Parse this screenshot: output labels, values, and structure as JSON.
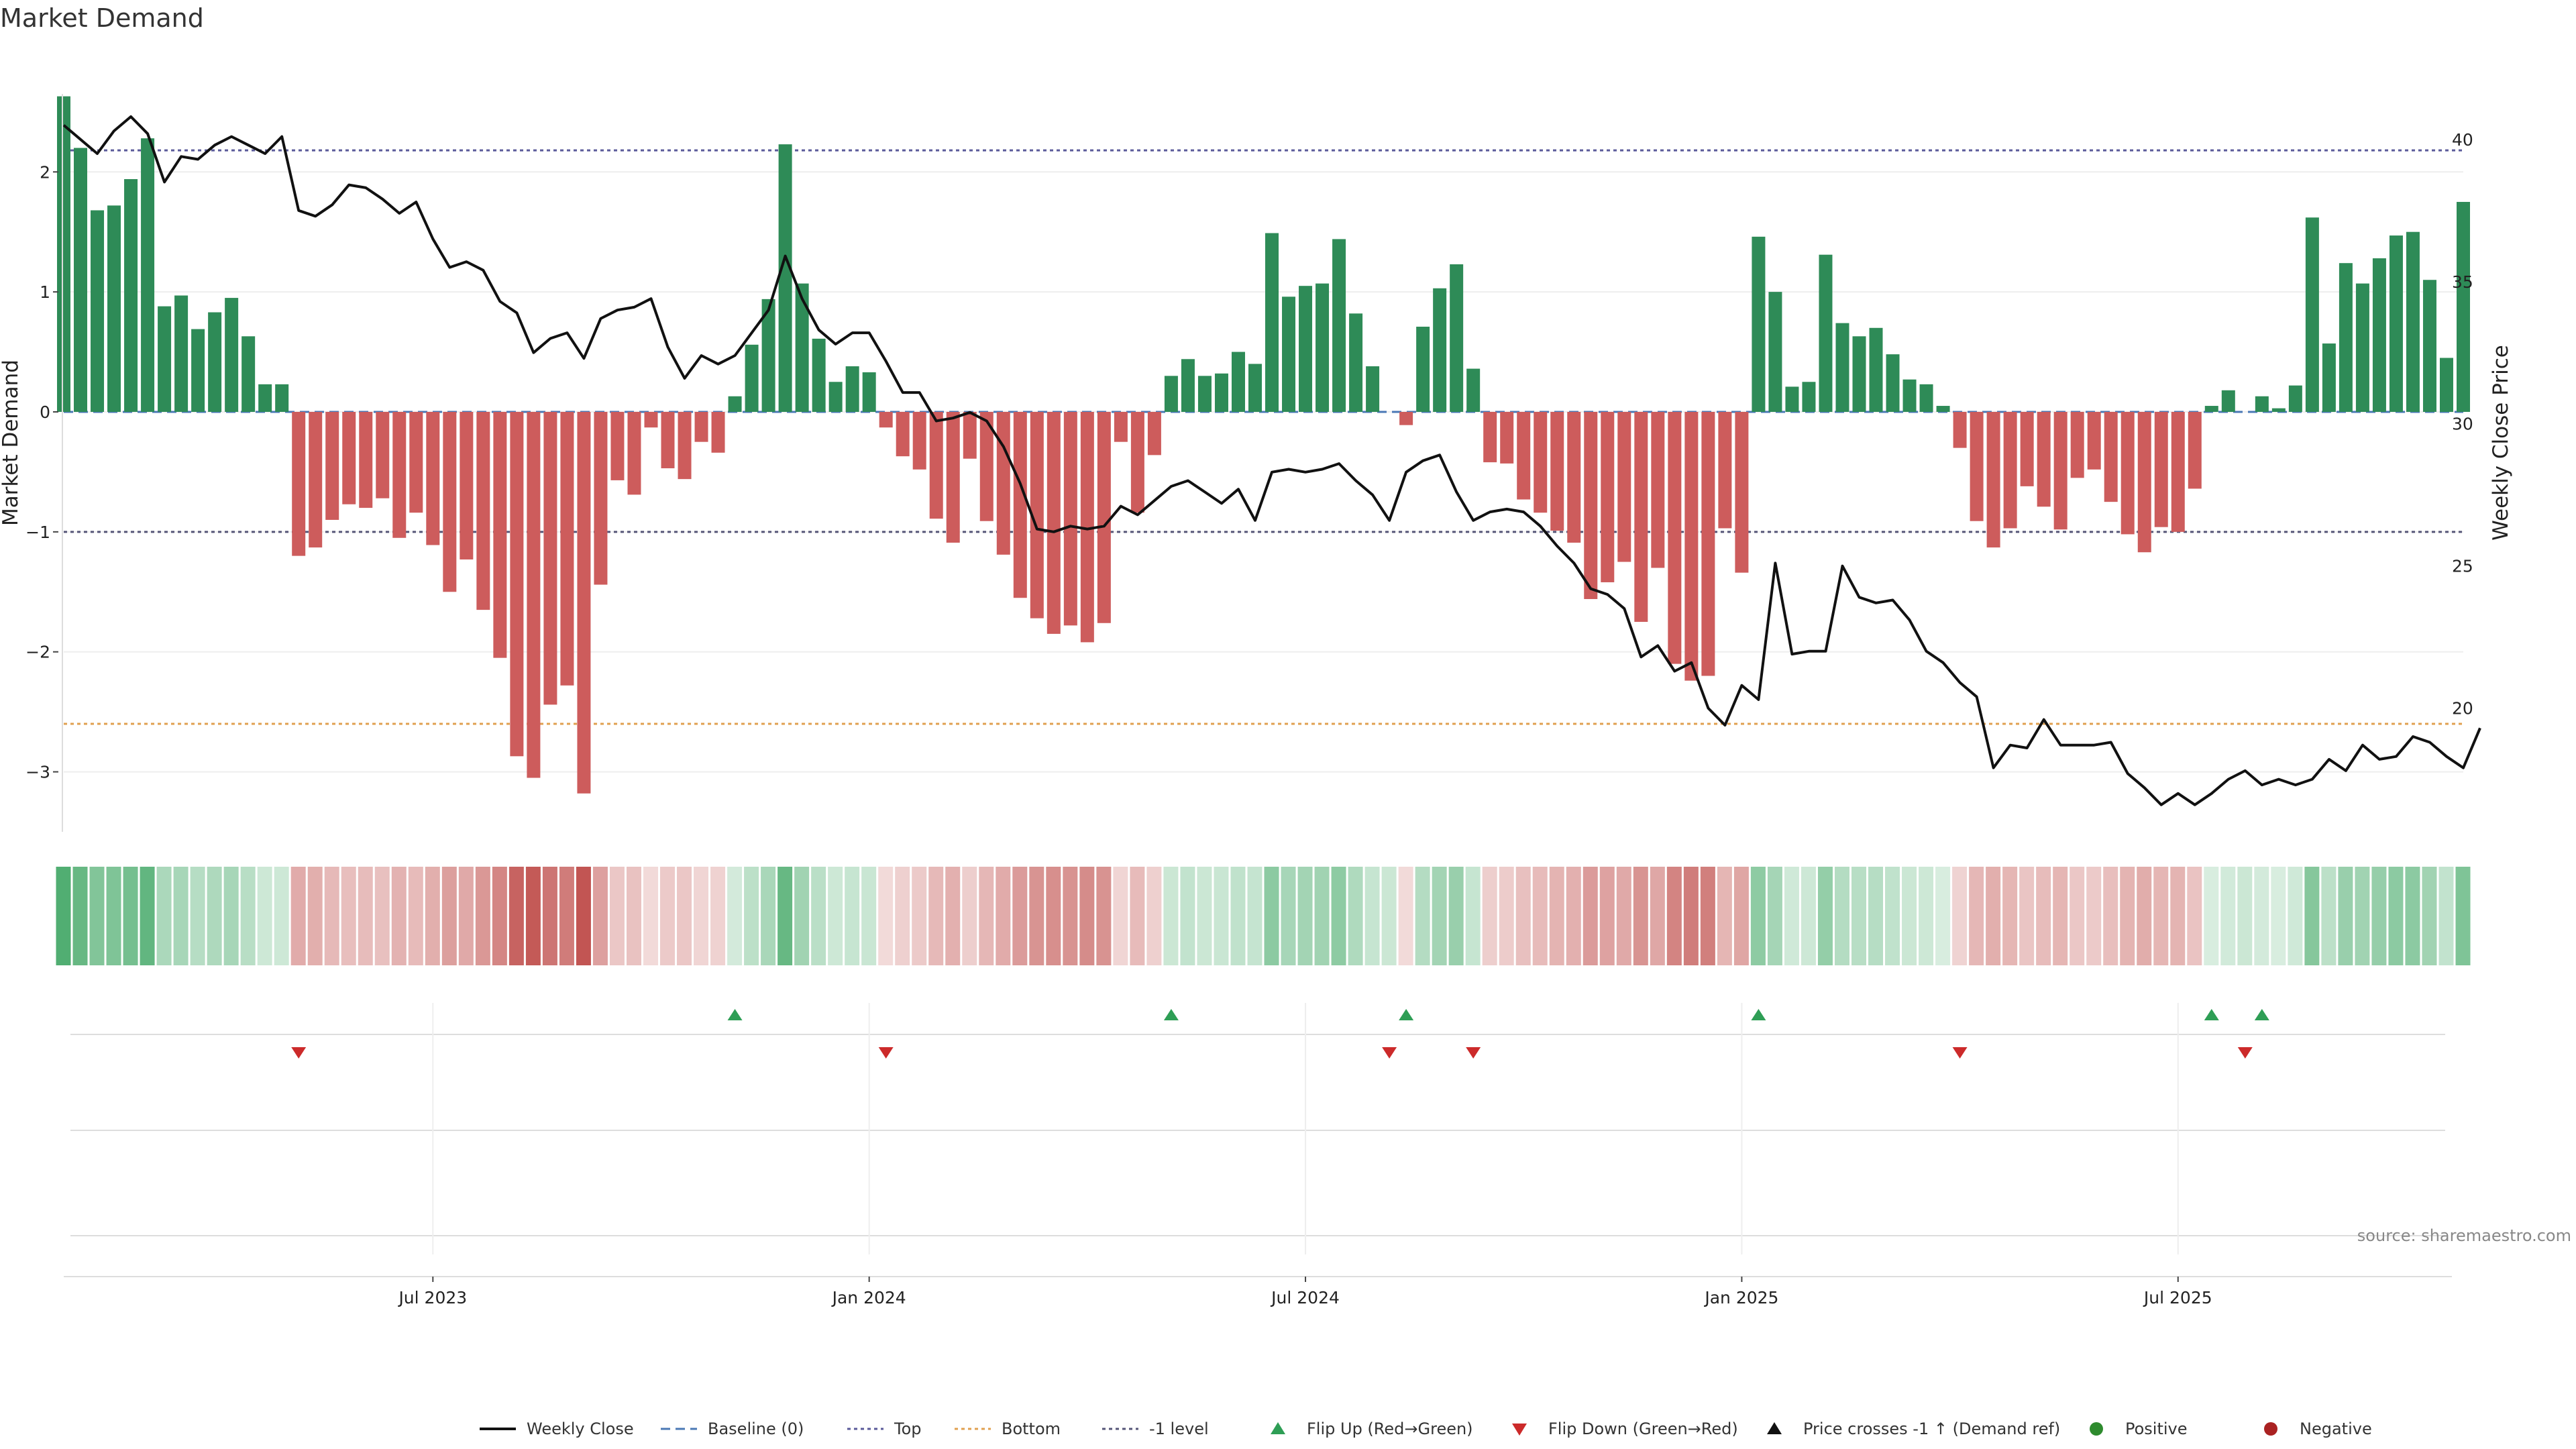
{
  "chart_data": {
    "type": "bar",
    "title": "Market Demand",
    "ylabel_left": "Market Demand",
    "ylabel_right": "Weekly Close Price",
    "source": "source: sharemaestro.com",
    "ylim_left": [
      -3.5,
      2.65
    ],
    "ylim_right": [
      15.65,
      41.6
    ],
    "yticks_left": [
      2,
      1,
      0,
      -1,
      -2,
      -3
    ],
    "yticks_left_labels": [
      "2",
      "1",
      "0",
      "−1",
      "−2",
      "−3"
    ],
    "yticks_right": [
      40,
      35,
      30,
      25,
      20
    ],
    "yticks_right_labels": [
      "40",
      "35",
      "30",
      "25",
      "20"
    ],
    "x_ticks": [
      {
        "label": "Jul 2023",
        "week": 22
      },
      {
        "label": "Jan 2024",
        "week": 48
      },
      {
        "label": "Jul 2024",
        "week": 74
      },
      {
        "label": "Jan 2025",
        "week": 100
      },
      {
        "label": "Jul 2025",
        "week": 126
      }
    ],
    "reference_lines": [
      {
        "name": "Top",
        "value": 2.18,
        "color": "#5a5a9a"
      },
      {
        "name": "-1 level",
        "value": -1.0,
        "color": "#555577"
      },
      {
        "name": "Bottom",
        "value": -2.6,
        "color": "#e0a050"
      },
      {
        "name": "Baseline (0)",
        "value": 0,
        "color": "#4a78b5"
      }
    ],
    "series": [
      {
        "name": "Market Demand",
        "values": [
          2.63,
          2.2,
          1.68,
          1.72,
          1.94,
          2.28,
          0.88,
          0.97,
          0.69,
          0.83,
          0.95,
          0.63,
          0.23,
          0.23,
          -1.2,
          -1.13,
          -0.9,
          -0.77,
          -0.8,
          -0.72,
          -1.05,
          -0.84,
          -1.11,
          -1.5,
          -1.23,
          -1.65,
          -2.05,
          -2.87,
          -3.05,
          -2.44,
          -2.28,
          -3.18,
          -1.44,
          -0.57,
          -0.69,
          -0.13,
          -0.47,
          -0.56,
          -0.25,
          -0.34,
          0.13,
          0.56,
          0.94,
          2.23,
          1.07,
          0.61,
          0.25,
          0.38,
          0.33,
          -0.13,
          -0.37,
          -0.48,
          -0.89,
          -1.09,
          -0.39,
          -0.91,
          -1.19,
          -1.55,
          -1.72,
          -1.85,
          -1.78,
          -1.92,
          -1.76,
          -0.25,
          -0.84,
          -0.36,
          0.3,
          0.44,
          0.3,
          0.32,
          0.5,
          0.4,
          1.49,
          0.96,
          1.05,
          1.07,
          1.44,
          0.82,
          0.38,
          0,
          -0.11,
          0.71,
          1.03,
          1.23,
          0.36,
          -0.42,
          -0.43,
          -0.73,
          -0.84,
          -0.99,
          -1.09,
          -1.56,
          -1.42,
          -1.25,
          -1.75,
          -1.3,
          -2.1,
          -2.24,
          -2.2,
          -0.97,
          -1.34,
          1.46,
          1.0,
          0.21,
          0.25,
          1.31,
          0.74,
          0.63,
          0.7,
          0.48,
          0.27,
          0.23,
          0.05,
          -0.3,
          -0.91,
          -1.13,
          -0.97,
          -0.62,
          -0.79,
          -0.98,
          -0.55,
          -0.48,
          -0.75,
          -1.02,
          -1.17,
          -0.96,
          -1.0,
          -0.64,
          0.05,
          0.18,
          0,
          0.13,
          0.03,
          0.22,
          1.62,
          0.57,
          1.24,
          1.07,
          1.28,
          1.47,
          1.5,
          1.1,
          0.45,
          1.75
        ]
      },
      {
        "name": "Weekly Close",
        "values": [
          40.5,
          40.0,
          39.5,
          40.3,
          40.8,
          40.2,
          38.5,
          39.4,
          39.3,
          39.8,
          40.1,
          39.8,
          39.5,
          40.1,
          37.5,
          37.3,
          37.7,
          38.4,
          38.3,
          37.9,
          37.4,
          37.8,
          36.5,
          35.5,
          35.7,
          35.4,
          34.3,
          33.9,
          32.5,
          33.0,
          33.2,
          32.3,
          33.7,
          34.0,
          34.1,
          34.4,
          32.7,
          31.6,
          32.4,
          32.1,
          32.4,
          33.2,
          34.0,
          35.9,
          34.4,
          33.3,
          32.8,
          33.2,
          33.2,
          32.2,
          31.1,
          31.1,
          30.1,
          30.2,
          30.4,
          30.1,
          29.2,
          27.9,
          26.3,
          26.2,
          26.4,
          26.3,
          26.4,
          27.1,
          26.8,
          27.3,
          27.8,
          28.0,
          27.6,
          27.2,
          27.7,
          26.6,
          28.3,
          28.4,
          28.3,
          28.4,
          28.6,
          28.0,
          27.5,
          26.6,
          28.3,
          28.7,
          28.9,
          27.6,
          26.6,
          26.9,
          27.0,
          26.9,
          26.4,
          25.7,
          25.1,
          24.2,
          24.0,
          23.5,
          21.8,
          22.2,
          21.3,
          21.6,
          20.0,
          19.4,
          20.8,
          20.3,
          25.1,
          21.9,
          22.0,
          22.0,
          25.0,
          23.9,
          23.7,
          23.8,
          23.1,
          22.0,
          21.6,
          20.9,
          20.4,
          17.9,
          18.7,
          18.6,
          19.6,
          18.7,
          18.7,
          18.7,
          18.8,
          17.7,
          17.2,
          16.6,
          17.0,
          16.6,
          17.0,
          17.5,
          17.8,
          17.3,
          17.5,
          17.3,
          17.5,
          18.2,
          17.8,
          18.7,
          18.2,
          18.3,
          19.0,
          18.8,
          18.3,
          17.9,
          19.3
        ]
      }
    ],
    "flip_up_weeks": [
      40,
      66,
      80,
      101,
      128,
      131
    ],
    "flip_down_weeks": [
      14,
      49,
      79,
      84,
      113,
      130
    ],
    "legend": [
      {
        "label": "Weekly Close",
        "kind": "line",
        "color": "#111111"
      },
      {
        "label": "Baseline (0)",
        "kind": "dash",
        "color": "#4a78b5"
      },
      {
        "label": "Top",
        "kind": "dot",
        "color": "#5a5a9a"
      },
      {
        "label": "Bottom",
        "kind": "dot",
        "color": "#e0a050"
      },
      {
        "label": "-1 level",
        "kind": "dot",
        "color": "#555577"
      },
      {
        "label": "Flip Up (Red→Green)",
        "kind": "tri-up",
        "color": "#2e9e55"
      },
      {
        "label": "Flip Down (Green→Red)",
        "kind": "tri-down",
        "color": "#cc2a2a"
      },
      {
        "label": "Price crosses -1 ↑ (Demand ref)",
        "kind": "tri-up",
        "color": "#111111"
      },
      {
        "label": "Positive",
        "kind": "circle",
        "color": "#2e8b2e"
      },
      {
        "label": "Negative",
        "kind": "circle",
        "color": "#aa2222"
      }
    ],
    "colors": {
      "positive": "#2e8b57",
      "negative": "#cd5c5c",
      "heat_positive": "#2e9e55",
      "heat_negative": "#c0504d"
    }
  }
}
